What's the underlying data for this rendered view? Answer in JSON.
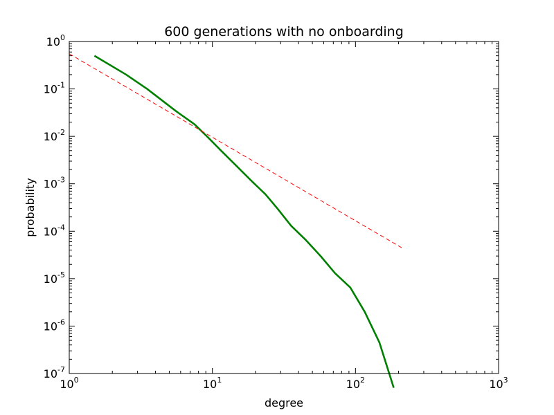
{
  "chart_data": {
    "type": "line",
    "title": "600 generations with no onboarding",
    "xlabel": "degree",
    "ylabel": "probability",
    "xscale": "log",
    "yscale": "log",
    "xlim": [
      1,
      1000
    ],
    "ylim": [
      1e-07,
      1
    ],
    "grid": false,
    "legend": "none",
    "x_ticks": [
      {
        "base": "10",
        "exp": "0"
      },
      {
        "base": "10",
        "exp": "1"
      },
      {
        "base": "10",
        "exp": "2"
      },
      {
        "base": "10",
        "exp": "3"
      }
    ],
    "y_ticks": [
      {
        "base": "10",
        "exp": "0"
      },
      {
        "base": "10",
        "exp": "-1"
      },
      {
        "base": "10",
        "exp": "-2"
      },
      {
        "base": "10",
        "exp": "-3"
      },
      {
        "base": "10",
        "exp": "-4"
      },
      {
        "base": "10",
        "exp": "-5"
      },
      {
        "base": "10",
        "exp": "-6"
      },
      {
        "base": "10",
        "exp": "-7"
      }
    ],
    "series": [
      {
        "color": "#008000",
        "style": "solid",
        "x": [
          1.5,
          2.5,
          3.5,
          5.5,
          7.5,
          9.5,
          11.5,
          14.5,
          18.5,
          23.5,
          28.5,
          35.5,
          45,
          57,
          72,
          92,
          116,
          147,
          185
        ],
        "y": [
          0.5,
          0.2,
          0.1,
          0.035,
          0.018,
          0.009,
          0.005,
          0.0025,
          0.0012,
          0.0006,
          0.0003,
          0.00013,
          6.5e-05,
          3e-05,
          1.3e-05,
          6.5e-06,
          2e-06,
          4.5e-07,
          5e-08
        ]
      },
      {
        "color": "#ff0000",
        "style": "dashed",
        "x": [
          1,
          210
        ],
        "y": [
          0.55,
          4.5e-05
        ]
      }
    ]
  }
}
